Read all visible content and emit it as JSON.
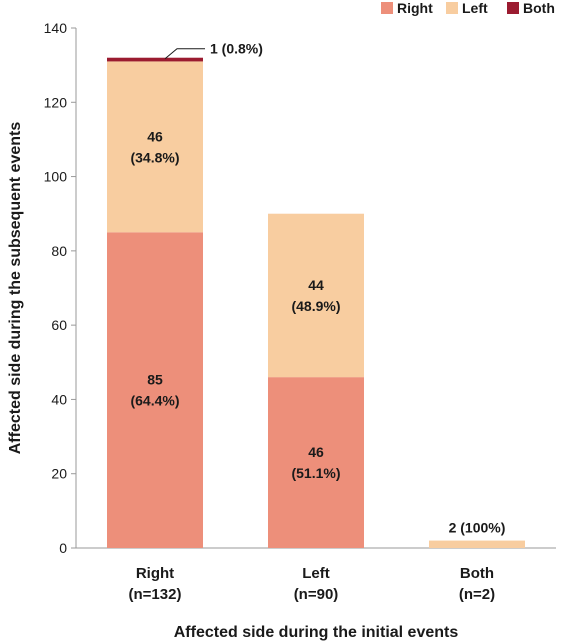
{
  "chart_data": {
    "type": "bar",
    "stacked": true,
    "categories": [
      "Right",
      "Left",
      "Both"
    ],
    "category_sublabels": [
      "(n=132)",
      "(n=90)",
      "(n=2)"
    ],
    "series": [
      {
        "name": "Right",
        "color": "#ED8F7A",
        "values": [
          85,
          46,
          0
        ]
      },
      {
        "name": "Left",
        "color": "#F8CDA0",
        "values": [
          46,
          44,
          2
        ]
      },
      {
        "name": "Both",
        "color": "#9B1B30",
        "values": [
          1,
          0,
          0
        ]
      }
    ],
    "data_labels": [
      {
        "category": 0,
        "series": 0,
        "lines": [
          "85",
          "(64.4%)"
        ]
      },
      {
        "category": 0,
        "series": 1,
        "lines": [
          "46",
          "(34.8%)"
        ]
      },
      {
        "category": 0,
        "series": 2,
        "lines": [
          "1 (0.8%)"
        ],
        "callout": true
      },
      {
        "category": 1,
        "series": 0,
        "lines": [
          "46",
          "(51.1%)"
        ]
      },
      {
        "category": 1,
        "series": 1,
        "lines": [
          "44",
          "(48.9%)"
        ]
      },
      {
        "category": 2,
        "series": 1,
        "lines": [
          "2 (100%)"
        ],
        "above": true
      }
    ],
    "xlabel": "Affected side during the initial events",
    "ylabel": "Affected side during the subsequent events",
    "ylim": [
      0,
      140
    ],
    "yticks": [
      0,
      20,
      40,
      60,
      80,
      100,
      120,
      140
    ],
    "grid": false,
    "legend_position": "top-right"
  }
}
